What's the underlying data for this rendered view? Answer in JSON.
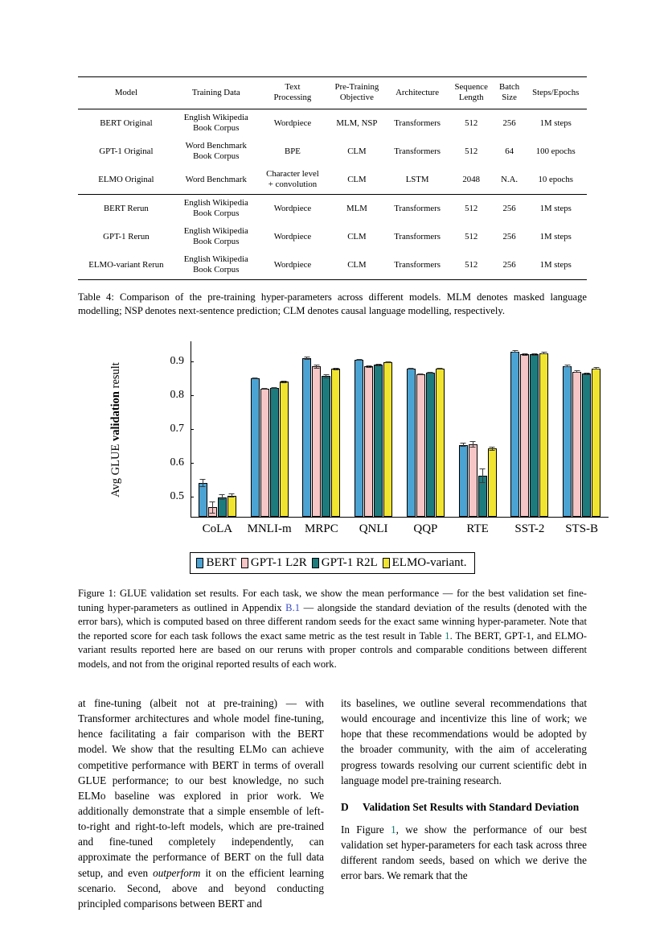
{
  "table": {
    "headers": [
      "Model",
      "Training Data",
      "Text\nProcessing",
      "Pre-Training\nObjective",
      "Architecture",
      "Sequence\nLength",
      "Batch\nSize",
      "Steps/Epochs"
    ],
    "original_rows": [
      [
        "BERT Original",
        "English Wikipedia\nBook Corpus",
        "Wordpiece",
        "MLM, NSP",
        "Transformers",
        "512",
        "256",
        "1M steps"
      ],
      [
        "GPT-1 Original",
        "Word Benchmark\nBook Corpus",
        "BPE",
        "CLM",
        "Transformers",
        "512",
        "64",
        "100 epochs"
      ],
      [
        "ELMO Original",
        "Word Benchmark",
        "Character level\n+ convolution",
        "CLM",
        "LSTM",
        "2048",
        "N.A.",
        "10 epochs"
      ]
    ],
    "rerun_rows": [
      [
        "BERT Rerun",
        "English Wikipedia\nBook Corpus",
        "Wordpiece",
        "MLM",
        "Transformers",
        "512",
        "256",
        "1M steps"
      ],
      [
        "GPT-1 Rerun",
        "English Wikipedia\nBook Corpus",
        "Wordpiece",
        "CLM",
        "Transformers",
        "512",
        "256",
        "1M steps"
      ],
      [
        "ELMO-variant Rerun",
        "English Wikipedia\nBook Corpus",
        "Wordpiece",
        "CLM",
        "Transformers",
        "512",
        "256",
        "1M steps"
      ]
    ]
  },
  "table_caption": {
    "segments": [
      {
        "t": "Table 4: Comparison of the pre-training hyper-parameters across different models. MLM denotes masked language modelling; NSP denotes next-sentence prediction; CLM denotes causal language modelling, respectively."
      }
    ]
  },
  "chart_data": {
    "type": "bar",
    "title": "",
    "xlabel": "",
    "ylabel_segments": [
      {
        "t": "Avg GLUE "
      },
      {
        "t": "validation",
        "c": "bold"
      },
      {
        "t": " result"
      }
    ],
    "ylim": [
      0.44,
      0.96
    ],
    "yticks": [
      0.5,
      0.6,
      0.7,
      0.8,
      0.9
    ],
    "grid": false,
    "legend_position": "below",
    "categories": [
      "CoLA",
      "MNLI-m",
      "MRPC",
      "QNLI",
      "QQP",
      "RTE",
      "SST-2",
      "STS-B"
    ],
    "legend": [
      "BERT",
      "GPT-1 L2R",
      "GPT-1 R2L",
      "ELMO-variant."
    ],
    "series": [
      {
        "name": "BERT",
        "color": "#4BA3D3",
        "values": [
          0.54,
          0.851,
          0.91,
          0.905,
          0.878,
          0.653,
          0.93,
          0.887
        ],
        "errors": [
          0.012,
          0.003,
          0.004,
          0.003,
          0.002,
          0.006,
          0.003,
          0.004
        ]
      },
      {
        "name": "GPT-1 L2R",
        "color": "#F5C6C5",
        "values": [
          0.468,
          0.82,
          0.885,
          0.885,
          0.863,
          0.655,
          0.921,
          0.87
        ],
        "errors": [
          0.018,
          0.003,
          0.005,
          0.003,
          0.002,
          0.01,
          0.003,
          0.004
        ]
      },
      {
        "name": "GPT-1 R2L",
        "color": "#1E7B7D",
        "values": [
          0.498,
          0.822,
          0.857,
          0.89,
          0.866,
          0.562,
          0.921,
          0.864
        ],
        "errors": [
          0.008,
          0.003,
          0.006,
          0.003,
          0.002,
          0.022,
          0.003,
          0.004
        ]
      },
      {
        "name": "ELMO-variant",
        "color": "#F0E431",
        "values": [
          0.503,
          0.84,
          0.878,
          0.898,
          0.878,
          0.642,
          0.925,
          0.88
        ],
        "errors": [
          0.006,
          0.003,
          0.004,
          0.003,
          0.002,
          0.006,
          0.003,
          0.004
        ]
      }
    ]
  },
  "figure_caption": {
    "segments": [
      {
        "t": "Figure 1: GLUE validation set results. For each task, we show the mean performance — for the best validation set fine-tuning hyper-parameters as outlined in Appendix "
      },
      {
        "t": "B.1",
        "c": "link-blue"
      },
      {
        "t": " — alongside the standard deviation of the results (denoted with the error bars), which is computed based on three different random seeds for the exact same winning hyper-parameter. Note that the reported score for each task follows the exact same metric as the test result in Table "
      },
      {
        "t": "1",
        "c": "link-teal"
      },
      {
        "t": ". The BERT, GPT-1, and ELMO-variant results reported here are based on our reruns with proper controls and comparable conditions between different models, and not from the original reported results of each work."
      }
    ]
  },
  "body": {
    "columns": [
      {
        "blocks": [
          {
            "type": "para",
            "segments": [
              {
                "t": "at fine-tuning (albeit not at pre-training) — with Transformer architectures and whole model fine-tuning, hence facilitating a fair comparison with the BERT model. We show that the resulting ELMo can achieve competitive performance with BERT in terms of overall GLUE performance; to our best knowledge, no such ELMo baseline was explored in prior work. We additionally demonstrate that a simple ensemble of left-to-right and right-to-left models, which are pre-trained and fine-tuned completely independently, can approximate the performance of BERT on the full data setup, and even "
              },
              {
                "t": "outperform",
                "c": "italic"
              },
              {
                "t": " it on the efficient learning scenario. Second, above and beyond conducting principled comparisons between BERT and"
              }
            ]
          }
        ]
      },
      {
        "blocks": [
          {
            "type": "para",
            "segments": [
              {
                "t": "its baselines, we outline several recommendations that would encourage and incentivize this line of work; we hope that these recommendations would be adopted by the broader community, with the aim of accelerating progress towards resolving our current scientific debt in language model pre-training research."
              }
            ]
          },
          {
            "type": "heading",
            "num": "D",
            "title": "Validation Set Results with Standard Deviation"
          },
          {
            "type": "para",
            "segments": [
              {
                "t": "In Figure "
              },
              {
                "t": "1",
                "c": "link-teal"
              },
              {
                "t": ", we show the performance of our best validation set hyper-parameters for each task across three different random seeds, based on which we derive the error bars. We remark that the"
              }
            ]
          }
        ]
      }
    ]
  }
}
